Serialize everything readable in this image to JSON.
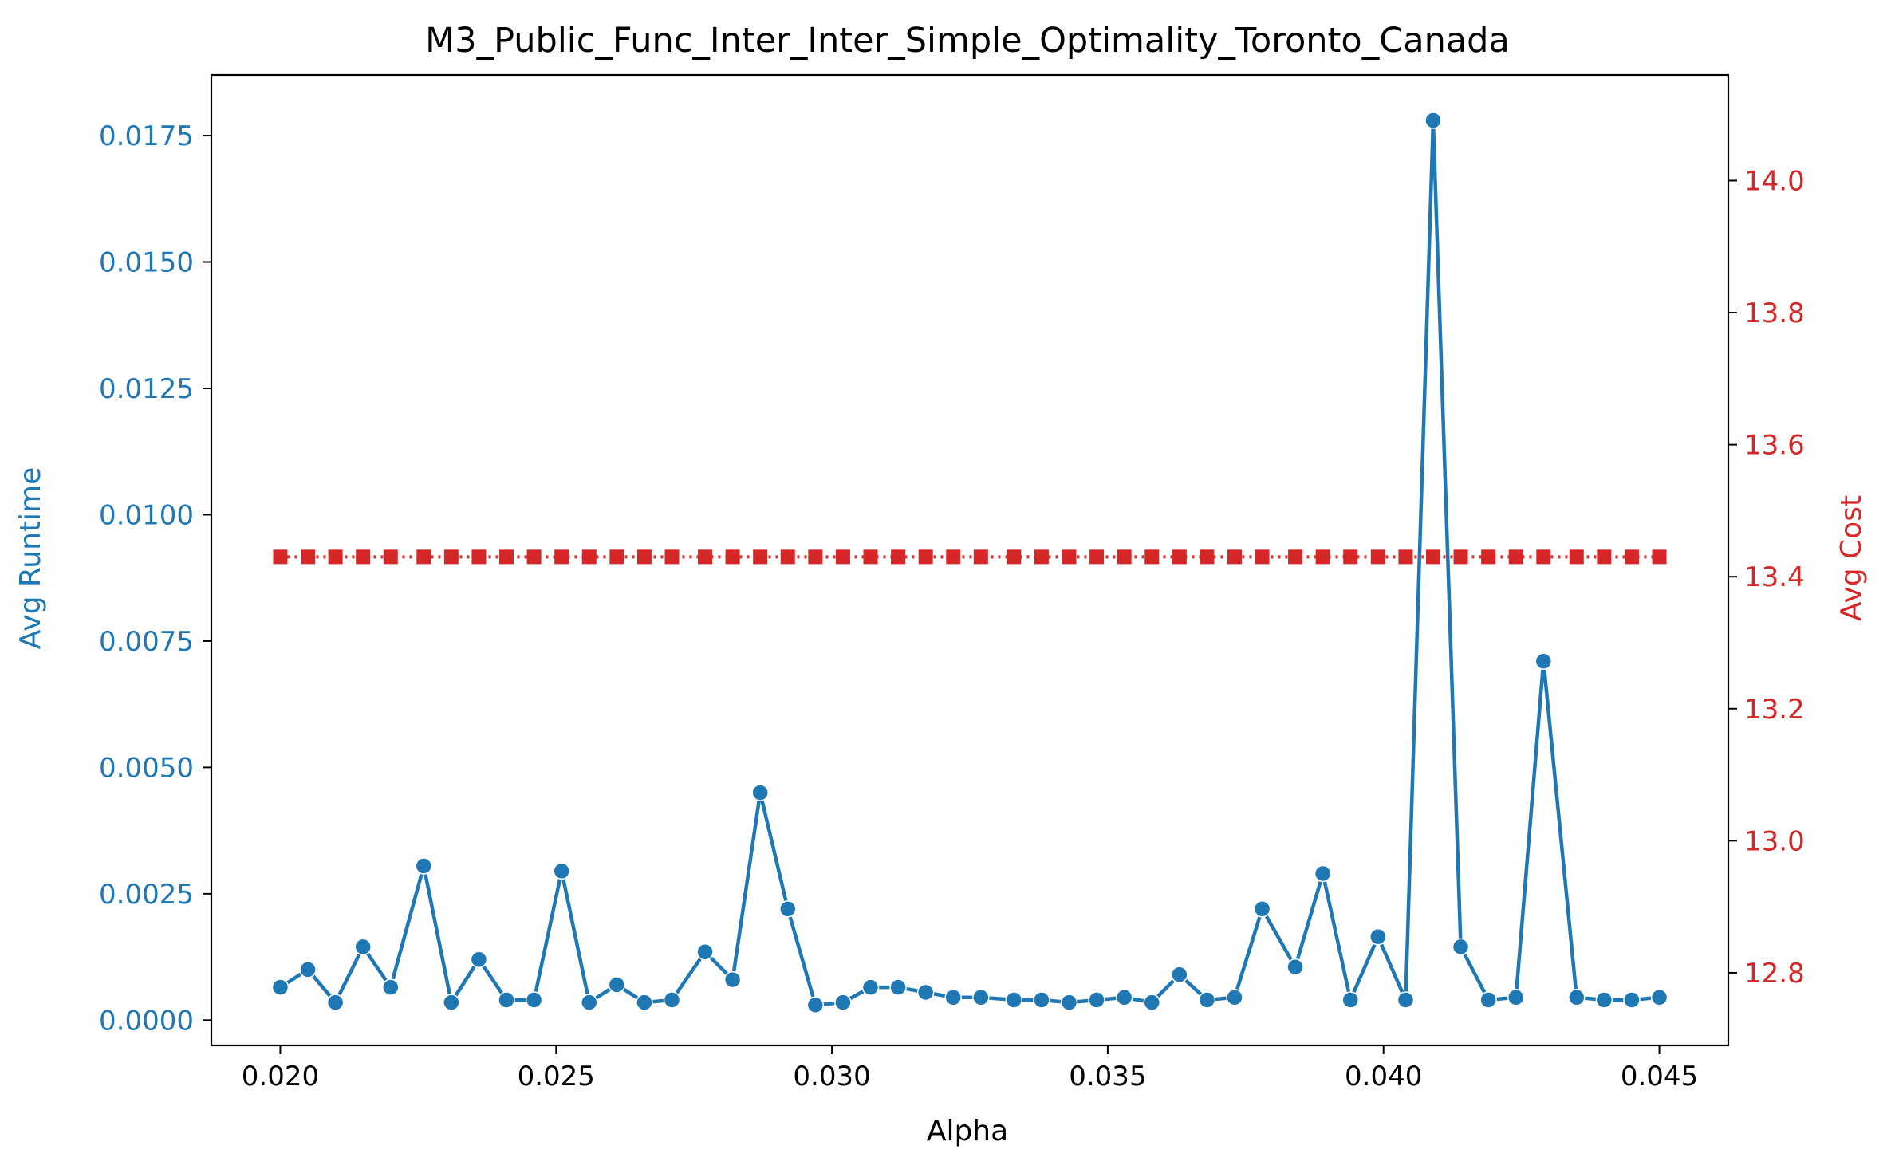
{
  "chart_data": {
    "type": "line",
    "title": "M3_Public_Func_Inter_Inter_Simple_Optimality_Toronto_Canada",
    "xlabel": "Alpha",
    "ylabel": "Avg Runtime",
    "ylabel_right": "Avg Cost",
    "xlim": [
      0.01875,
      0.04625
    ],
    "ylim": [
      -0.0005,
      0.0187
    ],
    "ylim_right": [
      12.69,
      14.16
    ],
    "x_ticks": [
      "0.020",
      "0.025",
      "0.030",
      "0.035",
      "0.040",
      "0.045"
    ],
    "x_tick_values": [
      0.02,
      0.025,
      0.03,
      0.035,
      0.04,
      0.045
    ],
    "y_ticks": [
      "0.0000",
      "0.0025",
      "0.0050",
      "0.0075",
      "0.0100",
      "0.0125",
      "0.0150",
      "0.0175"
    ],
    "y_tick_values": [
      0.0,
      0.0025,
      0.005,
      0.0075,
      0.01,
      0.0125,
      0.015,
      0.0175
    ],
    "y_right_ticks": [
      "12.8",
      "13.0",
      "13.2",
      "13.4",
      "13.6",
      "13.8",
      "14.0"
    ],
    "y_right_tick_values": [
      12.8,
      13.0,
      13.2,
      13.4,
      13.6,
      13.8,
      14.0
    ],
    "grid": false,
    "x": [
      0.02,
      0.0205,
      0.021,
      0.0215,
      0.022,
      0.0226,
      0.0231,
      0.0236,
      0.0241,
      0.0246,
      0.0251,
      0.0256,
      0.0261,
      0.0266,
      0.0271,
      0.0277,
      0.0282,
      0.0287,
      0.0292,
      0.0297,
      0.0302,
      0.0307,
      0.0312,
      0.0317,
      0.0322,
      0.0327,
      0.0333,
      0.0338,
      0.0343,
      0.0348,
      0.0353,
      0.0358,
      0.0363,
      0.0368,
      0.0373,
      0.0378,
      0.0384,
      0.0389,
      0.0394,
      0.0399,
      0.0404,
      0.0409,
      0.0414,
      0.0419,
      0.0424,
      0.0429,
      0.0435,
      0.044,
      0.0445,
      0.045
    ],
    "series": [
      {
        "name": "Avg Runtime",
        "axis": "left",
        "color": "#1f77b4",
        "marker": "circle",
        "values": [
          0.00065,
          0.001,
          0.00035,
          0.00145,
          0.00065,
          0.00305,
          0.00035,
          0.0012,
          0.0004,
          0.0004,
          0.00295,
          0.00035,
          0.0007,
          0.00035,
          0.0004,
          0.00135,
          0.0008,
          0.0045,
          0.0022,
          0.0003,
          0.00035,
          0.00065,
          0.00065,
          0.00055,
          0.00045,
          0.00045,
          0.0004,
          0.0004,
          0.00035,
          0.0004,
          0.00045,
          0.00035,
          0.0009,
          0.0004,
          0.00045,
          0.0022,
          0.00105,
          0.0029,
          0.0004,
          0.00165,
          0.0004,
          0.0178,
          0.00145,
          0.0004,
          0.00045,
          0.0071,
          0.00045,
          0.0004,
          0.0004,
          0.00045
        ]
      },
      {
        "name": "Avg Cost",
        "axis": "right",
        "color": "#d62728",
        "marker": "square",
        "linestyle": "dotted",
        "values": [
          13.43,
          13.43,
          13.43,
          13.43,
          13.43,
          13.43,
          13.43,
          13.43,
          13.43,
          13.43,
          13.43,
          13.43,
          13.43,
          13.43,
          13.43,
          13.43,
          13.43,
          13.43,
          13.43,
          13.43,
          13.43,
          13.43,
          13.43,
          13.43,
          13.43,
          13.43,
          13.43,
          13.43,
          13.43,
          13.43,
          13.43,
          13.43,
          13.43,
          13.43,
          13.43,
          13.43,
          13.43,
          13.43,
          13.43,
          13.43,
          13.43,
          13.43,
          13.43,
          13.43,
          13.43,
          13.43,
          13.43,
          13.43,
          13.43,
          13.43
        ]
      }
    ]
  }
}
